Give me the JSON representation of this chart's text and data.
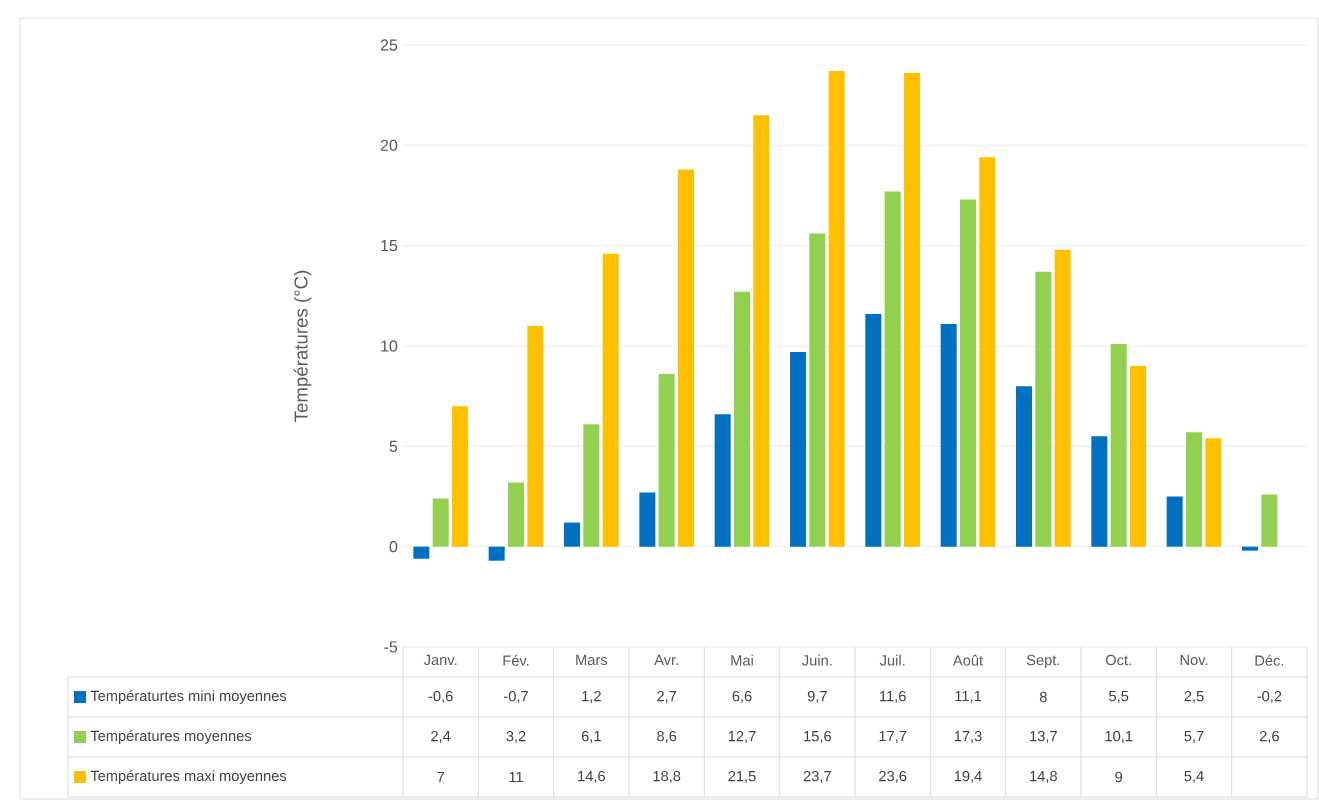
{
  "chart_data": {
    "type": "bar",
    "ylabel": "Températures (°C)",
    "categories": [
      "Janv.",
      "Fév.",
      "Mars",
      "Avr.",
      "Mai",
      "Juin.",
      "Juil.",
      "Août",
      "Sept.",
      "Oct.",
      "Nov.",
      "Déc."
    ],
    "series": [
      {
        "name": "Températurtes mini moyennes",
        "color": "#0070c0",
        "values": [
          -0.6,
          -0.7,
          1.2,
          2.7,
          6.6,
          9.7,
          11.6,
          11.1,
          8,
          5.5,
          2.5,
          -0.2
        ],
        "value_labels": [
          "-0,6",
          "-0,7",
          "1,2",
          "2,7",
          "6,6",
          "9,7",
          "11,6",
          "11,1",
          "8",
          "5,5",
          "2,5",
          "-0,2"
        ]
      },
      {
        "name": "Températures moyennes",
        "color": "#92d050",
        "values": [
          2.4,
          3.2,
          6.1,
          8.6,
          12.7,
          15.6,
          17.7,
          17.3,
          13.7,
          10.1,
          5.7,
          2.6
        ],
        "value_labels": [
          "2,4",
          "3,2",
          "6,1",
          "8,6",
          "12,7",
          "15,6",
          "17,7",
          "17,3",
          "13,7",
          "10,1",
          "5,7",
          "2,6"
        ]
      },
      {
        "name": "Températures maxi moyennes",
        "color": "#ffc000",
        "values": [
          7,
          11,
          14.6,
          18.8,
          21.5,
          23.7,
          23.6,
          19.4,
          14.8,
          9,
          5.4,
          null
        ],
        "value_labels": [
          "7",
          "11",
          "14,6",
          "18,8",
          "21,5",
          "23,7",
          "23,6",
          "19,4",
          "14,8",
          "9",
          "5,4",
          null
        ]
      }
    ],
    "ylim": [
      -5,
      25
    ],
    "yticks": [
      -5,
      0,
      5,
      10,
      15,
      20,
      25
    ],
    "grid": "y",
    "legend": "bottom"
  }
}
